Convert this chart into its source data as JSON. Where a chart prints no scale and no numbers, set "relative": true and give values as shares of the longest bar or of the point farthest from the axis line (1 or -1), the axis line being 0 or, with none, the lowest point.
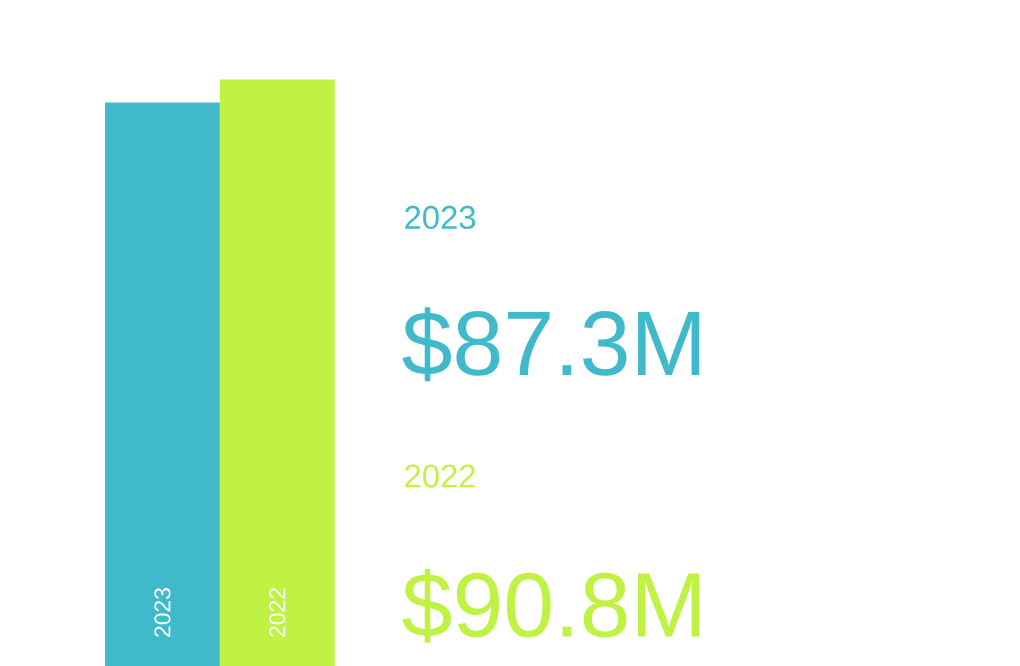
{
  "chart_data": [
    {
      "type": "bar",
      "categories": [
        "2023",
        "2022"
      ],
      "values": [
        0.961,
        1
      ],
      "colors": [
        "#40bacb",
        "#c0f244"
      ],
      "relative": true,
      "tick_labels": "x"
    },
    {
      "type": "other",
      "annotations": [
        "2023",
        "$87.3M",
        "2022",
        "$90.8M"
      ]
    }
  ]
}
